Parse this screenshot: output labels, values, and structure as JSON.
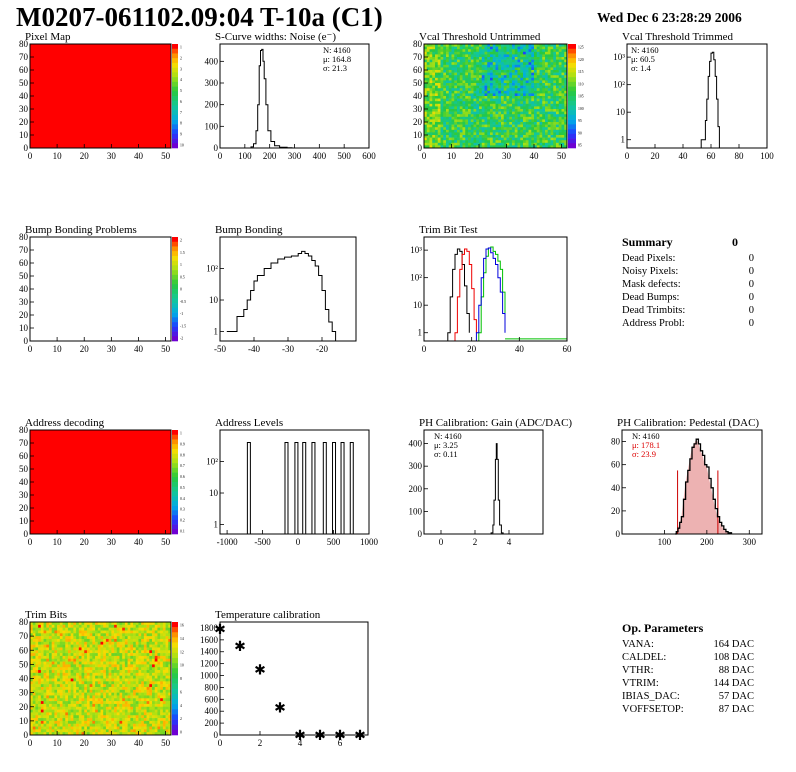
{
  "page": {
    "title": "M0207-061102.09:04 T-10a (C1)",
    "date": "Wed Dec  6 23:28:29 2006"
  },
  "colors": {
    "frame": "#000000",
    "map_fill": "#ff0000",
    "trim_red": "#ee0000",
    "trim_green": "#00c000",
    "trim_blue": "#0000dd",
    "pedestal_fill": "#cc2222",
    "stats_red": "#dd0000"
  },
  "chart_data": [
    {
      "type": "heatmap",
      "title": "Pixel Map",
      "xticks": [
        "0",
        "10",
        "20",
        "30",
        "40",
        "50"
      ],
      "yticks": [
        "0",
        "10",
        "20",
        "30",
        "40",
        "50",
        "60",
        "70",
        "80"
      ],
      "xlim": [
        0,
        52
      ],
      "ylim": [
        0,
        80
      ],
      "fill": "uniform",
      "fill_color": "#ff0000",
      "zticks": [
        "1",
        "2",
        "3",
        "4",
        "5",
        "6",
        "7",
        "8",
        "9",
        "10"
      ]
    },
    {
      "type": "bar",
      "title": "S-Curve widths: Noise (e⁻)",
      "xticks": [
        "0",
        "100",
        "200",
        "300",
        "400",
        "500",
        "600"
      ],
      "yticks": [
        "0",
        "100",
        "200",
        "300",
        "400"
      ],
      "xlim": [
        0,
        600
      ],
      "ylim": [
        0,
        480
      ],
      "stats": [
        "N: 4160",
        "μ: 164.8",
        "σ: 21.3"
      ],
      "points": [
        [
          100,
          0
        ],
        [
          125,
          5
        ],
        [
          135,
          20
        ],
        [
          145,
          80
        ],
        [
          152,
          200
        ],
        [
          158,
          380
        ],
        [
          163,
          450
        ],
        [
          168,
          455
        ],
        [
          173,
          400
        ],
        [
          178,
          320
        ],
        [
          185,
          200
        ],
        [
          193,
          80
        ],
        [
          205,
          30
        ],
        [
          220,
          10
        ],
        [
          240,
          3
        ],
        [
          270,
          1
        ],
        [
          290,
          0
        ]
      ]
    },
    {
      "type": "heatmap",
      "title": "Vcal Threshold Untrimmed",
      "xticks": [
        "0",
        "10",
        "20",
        "30",
        "40",
        "50"
      ],
      "yticks": [
        "0",
        "10",
        "20",
        "30",
        "40",
        "50",
        "60",
        "70",
        "80"
      ],
      "xlim": [
        0,
        52
      ],
      "ylim": [
        0,
        80
      ],
      "fill": "noise",
      "zticks": [
        "125",
        "120",
        "115",
        "110",
        "105",
        "100",
        "95",
        "90",
        "85"
      ]
    },
    {
      "type": "bar",
      "title": "Vcal Threshold Trimmed",
      "scale": "log",
      "xticks": [
        "0",
        "20",
        "40",
        "60",
        "80",
        "100"
      ],
      "yticks": [
        "1",
        "10",
        "10²",
        "10³"
      ],
      "xlim": [
        0,
        100
      ],
      "ylim": [
        0.5,
        3000
      ],
      "stats": [
        "N: 4160",
        "μ: 60.5",
        "σ:  1.4"
      ],
      "points": [
        [
          52,
          0.5
        ],
        [
          53,
          1
        ],
        [
          55,
          1
        ],
        [
          56,
          5
        ],
        [
          57,
          30
        ],
        [
          58,
          200
        ],
        [
          59,
          700
        ],
        [
          60,
          1400
        ],
        [
          61,
          1500
        ],
        [
          62,
          800
        ],
        [
          63,
          200
        ],
        [
          64,
          30
        ],
        [
          65,
          3
        ],
        [
          66,
          0.5
        ]
      ]
    },
    {
      "type": "heatmap",
      "title": "Bump Bonding Problems",
      "xticks": [
        "0",
        "10",
        "20",
        "30",
        "40",
        "50"
      ],
      "yticks": [
        "0",
        "10",
        "20",
        "30",
        "40",
        "50",
        "60",
        "70",
        "80"
      ],
      "xlim": [
        0,
        52
      ],
      "ylim": [
        0,
        80
      ],
      "fill": "empty",
      "zticks": [
        "2",
        "1.5",
        "1",
        "0.5",
        "0",
        "-0.5",
        "-1",
        "-1.5",
        "-2"
      ]
    },
    {
      "type": "bar",
      "title": "Bump Bonding",
      "scale": "log",
      "xticks": [
        "-50",
        "-40",
        "-30",
        "-20"
      ],
      "yticks": [
        "1",
        "10",
        "10²"
      ],
      "xlim": [
        -50,
        -10
      ],
      "ylim": [
        0.5,
        1000
      ],
      "points": [
        [
          -48,
          1
        ],
        [
          -45,
          3
        ],
        [
          -43,
          5
        ],
        [
          -42,
          10
        ],
        [
          -41,
          20
        ],
        [
          -40,
          40
        ],
        [
          -39,
          60
        ],
        [
          -37,
          100
        ],
        [
          -35,
          150
        ],
        [
          -33,
          200
        ],
        [
          -31,
          230
        ],
        [
          -29,
          250
        ],
        [
          -27,
          300
        ],
        [
          -26,
          350
        ],
        [
          -25,
          300
        ],
        [
          -24,
          250
        ],
        [
          -23,
          180
        ],
        [
          -22,
          120
        ],
        [
          -21,
          60
        ],
        [
          -20,
          20
        ],
        [
          -19,
          5
        ],
        [
          -18,
          2
        ],
        [
          -17,
          1
        ],
        [
          -16,
          0.5
        ]
      ]
    },
    {
      "type": "line",
      "title": "Trim Bit Test",
      "scale": "log",
      "xticks": [
        "0",
        "20",
        "40",
        "60"
      ],
      "yticks": [
        "1",
        "10",
        "10²",
        "10³"
      ],
      "xlim": [
        0,
        60
      ],
      "ylim": [
        0.5,
        3000
      ],
      "series": [
        {
          "color": "#000000",
          "points": [
            [
              10,
              1
            ],
            [
              11,
              20
            ],
            [
              12,
              200
            ],
            [
              13,
              700
            ],
            [
              14,
              1100
            ],
            [
              15,
              900
            ],
            [
              16,
              300
            ],
            [
              17,
              50
            ],
            [
              18,
              5
            ],
            [
              19,
              1
            ]
          ]
        },
        {
          "color": "#ee0000",
          "points": [
            [
              13,
              1
            ],
            [
              14,
              20
            ],
            [
              15,
              200
            ],
            [
              16,
              700
            ],
            [
              17,
              1100
            ],
            [
              18,
              900
            ],
            [
              19,
              300
            ],
            [
              20,
              40
            ],
            [
              21,
              3
            ],
            [
              22,
              1
            ]
          ]
        },
        {
          "color": "#00c000",
          "points": [
            [
              23,
              1
            ],
            [
              24,
              20
            ],
            [
              25,
              150
            ],
            [
              26,
              600
            ],
            [
              27,
              1200
            ],
            [
              28,
              1300
            ],
            [
              29,
              900
            ],
            [
              30,
              700
            ],
            [
              31,
              400
            ],
            [
              32,
              200
            ],
            [
              33,
              30
            ],
            [
              34,
              2
            ]
          ]
        },
        {
          "color": "#0000dd",
          "points": [
            [
              22,
              1
            ],
            [
              23,
              10
            ],
            [
              24,
              100
            ],
            [
              25,
              500
            ],
            [
              26,
              1100
            ],
            [
              27,
              1200
            ],
            [
              28,
              800
            ],
            [
              29,
              500
            ],
            [
              30,
              300
            ],
            [
              31,
              100
            ],
            [
              32,
              30
            ],
            [
              33,
              5
            ],
            [
              34,
              1
            ]
          ]
        }
      ]
    },
    {
      "type": "table",
      "title": "Summary",
      "total": "0",
      "rows": [
        [
          "Dead Pixels:",
          "0"
        ],
        [
          "Noisy Pixels:",
          "0"
        ],
        [
          "Mask defects:",
          "0"
        ],
        [
          "Dead Bumps:",
          "0"
        ],
        [
          "Dead Trimbits:",
          "0"
        ],
        [
          "Address Probl:",
          "0"
        ]
      ]
    },
    {
      "type": "heatmap",
      "title": "Address decoding",
      "xticks": [
        "0",
        "10",
        "20",
        "30",
        "40",
        "50"
      ],
      "yticks": [
        "0",
        "10",
        "20",
        "30",
        "40",
        "50",
        "60",
        "70",
        "80"
      ],
      "xlim": [
        0,
        52
      ],
      "ylim": [
        0,
        80
      ],
      "fill": "uniform",
      "fill_color": "#ff0000",
      "zticks": [
        "1",
        "0.9",
        "0.8",
        "0.7",
        "0.6",
        "0.5",
        "0.4",
        "0.3",
        "0.2",
        "0.1"
      ]
    },
    {
      "type": "bar",
      "title": "Address Levels",
      "scale": "log",
      "xticks": [
        "-1000",
        "-500",
        "0",
        "500",
        "1000"
      ],
      "yticks": [
        "1",
        "10",
        "10²"
      ],
      "xlim": [
        -1100,
        1000
      ],
      "ylim": [
        0.5,
        1000
      ],
      "spikes": [
        -700,
        -170,
        -30,
        80,
        210,
        370,
        500,
        620,
        750
      ],
      "spike_height": 400
    },
    {
      "type": "bar",
      "title": "PH Calibration: Gain (ADC/DAC)",
      "xticks": [
        "0",
        "2",
        "4"
      ],
      "yticks": [
        "0",
        "100",
        "200",
        "300",
        "400"
      ],
      "xlim": [
        -1,
        6
      ],
      "ylim": [
        0,
        460
      ],
      "stats": [
        "N: 4160",
        "μ: 3.25",
        "σ: 0.11"
      ],
      "points": [
        [
          2.85,
          0
        ],
        [
          2.95,
          5
        ],
        [
          3.05,
          40
        ],
        [
          3.12,
          150
        ],
        [
          3.2,
          330
        ],
        [
          3.25,
          400
        ],
        [
          3.3,
          330
        ],
        [
          3.37,
          150
        ],
        [
          3.45,
          40
        ],
        [
          3.55,
          5
        ],
        [
          3.65,
          0
        ]
      ]
    },
    {
      "type": "bar",
      "title": "PH Calibration: Pedestal (DAC)",
      "xticks": [
        "100",
        "200",
        "300"
      ],
      "yticks": [
        "0",
        "20",
        "40",
        "60",
        "80"
      ],
      "xlim": [
        0,
        330
      ],
      "ylim": [
        0,
        90
      ],
      "stats": [
        "N: 4160",
        "μ: 178.1",
        "σ: 23.9"
      ],
      "fit_range": [
        131,
        226
      ],
      "points": [
        [
          125,
          0
        ],
        [
          128,
          2
        ],
        [
          132,
          5
        ],
        [
          136,
          10
        ],
        [
          140,
          15
        ],
        [
          145,
          30
        ],
        [
          150,
          45
        ],
        [
          155,
          55
        ],
        [
          160,
          65
        ],
        [
          165,
          75
        ],
        [
          170,
          78
        ],
        [
          175,
          82
        ],
        [
          180,
          78
        ],
        [
          185,
          72
        ],
        [
          190,
          68
        ],
        [
          195,
          60
        ],
        [
          200,
          58
        ],
        [
          205,
          48
        ],
        [
          210,
          40
        ],
        [
          215,
          30
        ],
        [
          220,
          22
        ],
        [
          225,
          15
        ],
        [
          230,
          10
        ],
        [
          235,
          7
        ],
        [
          240,
          4
        ],
        [
          245,
          2
        ],
        [
          250,
          1
        ],
        [
          258,
          0
        ]
      ]
    },
    {
      "type": "heatmap",
      "title": "Trim Bits",
      "xticks": [
        "0",
        "10",
        "20",
        "30",
        "40",
        "50"
      ],
      "yticks": [
        "0",
        "10",
        "20",
        "30",
        "40",
        "50",
        "60",
        "70",
        "80"
      ],
      "xlim": [
        0,
        52
      ],
      "ylim": [
        0,
        80
      ],
      "fill": "trim",
      "zticks": [
        "16",
        "14",
        "12",
        "10",
        "8",
        "6",
        "4",
        "2",
        "0"
      ]
    },
    {
      "type": "scatter",
      "title": "Temperature calibration",
      "xticks": [
        "0",
        "2",
        "4",
        "6"
      ],
      "yticks": [
        "0",
        "200",
        "400",
        "600",
        "800",
        "1000",
        "1200",
        "1400",
        "1600",
        "1800"
      ],
      "xlim": [
        0,
        7.4
      ],
      "ylim": [
        0,
        1900
      ],
      "marker": "✱",
      "points": [
        [
          0,
          1780
        ],
        [
          1,
          1500
        ],
        [
          2,
          1100
        ],
        [
          3,
          460
        ],
        [
          4,
          0
        ],
        [
          5,
          0
        ],
        [
          6,
          0
        ],
        [
          7,
          0
        ]
      ]
    },
    {
      "type": "table",
      "title": "Op. Parameters",
      "rows": [
        [
          "VANA:",
          "164 DAC"
        ],
        [
          "CALDEL:",
          "108 DAC"
        ],
        [
          "VTHR:",
          "88 DAC"
        ],
        [
          "VTRIM:",
          "144 DAC"
        ],
        [
          "IBIAS_DAC:",
          "57 DAC"
        ],
        [
          "VOFFSETOP:",
          "87 DAC"
        ]
      ]
    }
  ]
}
